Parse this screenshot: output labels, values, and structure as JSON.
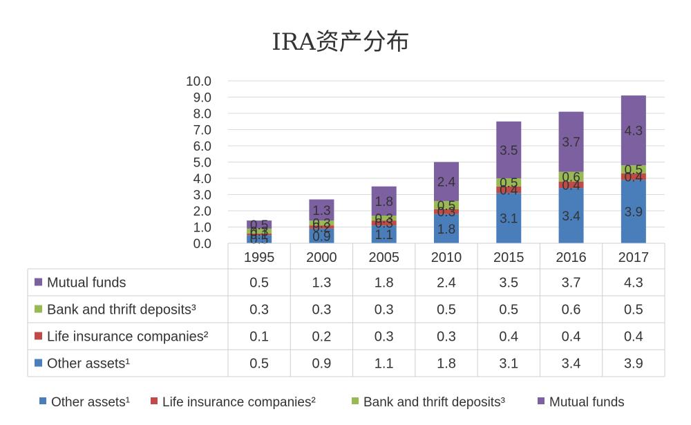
{
  "chart_data": {
    "type": "bar",
    "stacked": true,
    "title": "IRA资产分布",
    "categories": [
      "1995",
      "2000",
      "2005",
      "2010",
      "2015",
      "2016",
      "2017"
    ],
    "ylim": [
      0,
      10
    ],
    "yticks": [
      "0.0",
      "1.0",
      "2.0",
      "3.0",
      "4.0",
      "5.0",
      "6.0",
      "7.0",
      "8.0",
      "9.0",
      "10.0"
    ],
    "grid": true,
    "legend_position": "bottom",
    "data_table": true,
    "series": [
      {
        "name": "Other assets¹",
        "color": "#4a7ebb",
        "values": [
          0.5,
          0.9,
          1.1,
          1.8,
          3.1,
          3.4,
          3.9
        ]
      },
      {
        "name": "Life insurance companies²",
        "color": "#be4b48",
        "values": [
          0.1,
          0.2,
          0.3,
          0.3,
          0.4,
          0.4,
          0.4
        ]
      },
      {
        "name": "Bank and thrift deposits³",
        "color": "#98b954",
        "values": [
          0.3,
          0.3,
          0.3,
          0.5,
          0.5,
          0.6,
          0.5
        ]
      },
      {
        "name": "Mutual funds",
        "color": "#7d60a0",
        "values": [
          0.5,
          1.3,
          1.8,
          2.4,
          3.5,
          3.7,
          4.3
        ]
      }
    ]
  }
}
